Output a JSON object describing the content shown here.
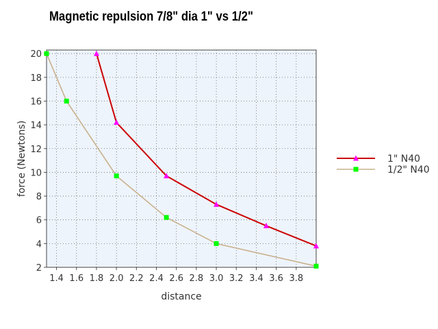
{
  "chart_data": {
    "type": "line",
    "title": "Magnetic repulsion 7/8\" dia 1\" vs  1/2\"",
    "xlabel": "distance",
    "ylabel": "force (Newtons)",
    "xlim": [
      1.3,
      4.0
    ],
    "ylim": [
      2,
      20.3
    ],
    "x_ticks": [
      "1.4",
      "1.6",
      "1.8",
      "2.0",
      "2.2",
      "2.4",
      "2.6",
      "2.8",
      "3.0",
      "3.2",
      "3.4",
      "3.6",
      "3.8"
    ],
    "y_ticks": [
      "2",
      "4",
      "6",
      "8",
      "10",
      "12",
      "14",
      "16",
      "18",
      "20"
    ],
    "grid": true,
    "legend_position": "right",
    "series": [
      {
        "name": "1\"  N40",
        "color": "#cc0000",
        "marker": "triangle",
        "marker_color": "#ff00ff",
        "x": [
          1.8,
          2.0,
          2.5,
          3.0,
          3.5,
          4.0
        ],
        "y": [
          20.0,
          14.2,
          9.7,
          7.3,
          5.5,
          3.8
        ]
      },
      {
        "name": "1/2\" N40",
        "color": "#c8b08c",
        "marker": "square",
        "marker_color": "#00ff00",
        "x": [
          1.3,
          1.5,
          2.0,
          2.5,
          3.0,
          4.0
        ],
        "y": [
          20.0,
          16.0,
          9.7,
          6.2,
          4.0,
          2.1
        ]
      }
    ]
  }
}
